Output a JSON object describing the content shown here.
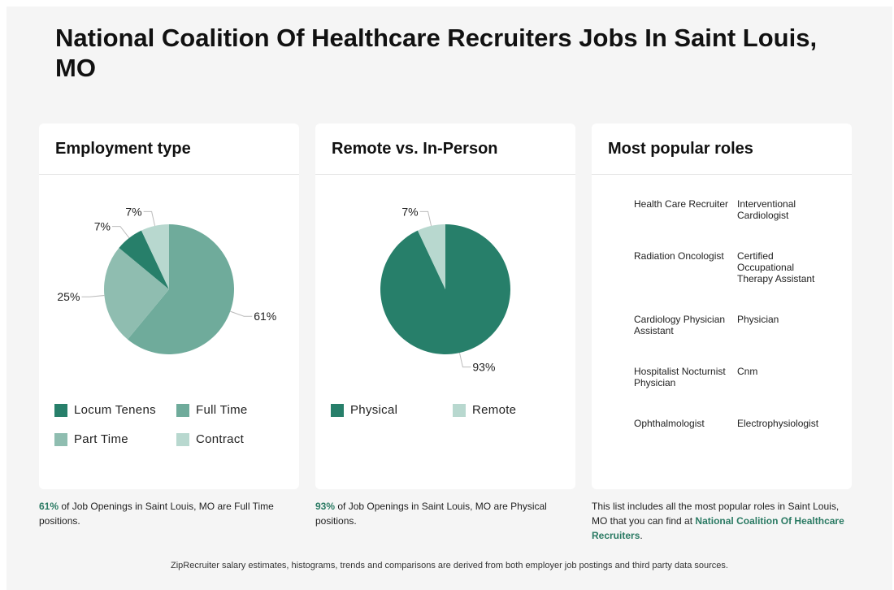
{
  "page": {
    "title": "National Coalition Of Healthcare Recruiters Jobs In Saint Louis, MO",
    "disclaimer": "ZipRecruiter salary estimates, histograms, trends and comparisons are derived from both employer job postings and third party data sources."
  },
  "colors": {
    "locum_tenens": "#277f6a",
    "full_time": "#6fab9b",
    "part_time": "#8fbdb0",
    "contract": "#b8d8cf",
    "physical": "#277f6a",
    "remote": "#b8d8cf",
    "highlight": "#2a7a63"
  },
  "employment": {
    "heading": "Employment type",
    "footer_value": "61%",
    "footer_text": " of Job Openings in Saint Louis, MO are Full Time positions."
  },
  "remote": {
    "heading": "Remote vs. In-Person",
    "footer_value": "93%",
    "footer_text": " of Job Openings in Saint Louis, MO are Physical positions."
  },
  "roles": {
    "heading": "Most popular roles",
    "items": [
      "Health Care Recruiter",
      "Interventional Cardiologist",
      "Radiation Oncologist",
      "Certified Occupational Therapy Assistant",
      "Cardiology Physician Assistant",
      "Physician",
      "Hospitalist Nocturnist Physician",
      "Cnm",
      "Ophthalmologist",
      "Electrophysiologist"
    ],
    "footer_pre": "This list includes all the most popular roles in Saint Louis, MO that you can find at ",
    "footer_link": "National Coalition Of Healthcare Recruiters",
    "footer_post": "."
  },
  "chart_data": [
    {
      "type": "pie",
      "title": "Employment type",
      "slices": [
        {
          "label": "Full Time",
          "value": 61,
          "display": "61%",
          "color": "#6fab9b"
        },
        {
          "label": "Part Time",
          "value": 25,
          "display": "25%",
          "color": "#8fbdb0"
        },
        {
          "label": "Locum Tenens",
          "value": 7,
          "display": "7%",
          "color": "#277f6a"
        },
        {
          "label": "Contract",
          "value": 7,
          "display": "7%",
          "color": "#b8d8cf"
        }
      ],
      "legend": [
        "Locum Tenens",
        "Full Time",
        "Part Time",
        "Contract"
      ]
    },
    {
      "type": "pie",
      "title": "Remote vs. In-Person",
      "slices": [
        {
          "label": "Physical",
          "value": 93,
          "display": "93%",
          "color": "#277f6a"
        },
        {
          "label": "Remote",
          "value": 7,
          "display": "7%",
          "color": "#b8d8cf"
        }
      ],
      "legend": [
        "Physical",
        "Remote"
      ]
    }
  ]
}
